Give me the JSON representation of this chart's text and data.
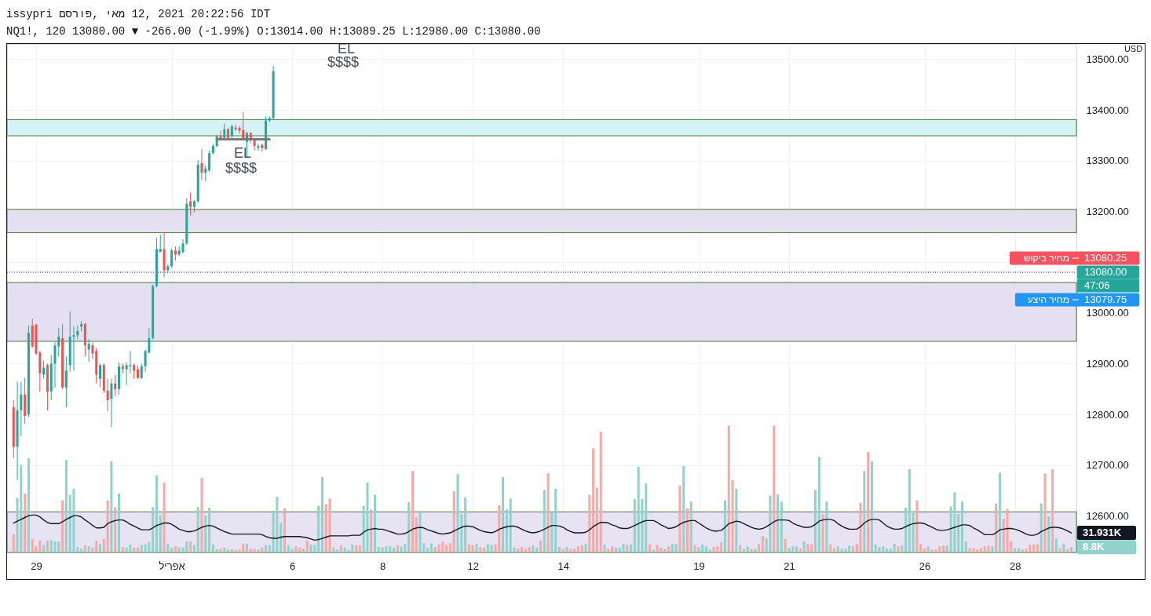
{
  "chart_data": {
    "type": "candlestick",
    "title": "issypri פורסם, מאי 12, 2021 20:22:56 IDT",
    "subtitle": "NQ1!, 120 13080.00 ▼ -266.00 (-1.99%) O:13014.00 H:13089.25 L:12980.00 C:13080.00",
    "ylabel": "USD",
    "categories": [
      null,
      null,
      null,
      null,
      null,
      null,
      "29",
      null,
      null,
      null,
      null,
      null,
      null,
      null,
      null,
      null,
      null,
      null,
      null,
      null,
      null,
      null,
      null,
      null,
      null,
      null,
      null,
      null,
      null,
      null,
      null,
      null,
      null,
      null,
      null,
      null,
      null,
      null,
      null,
      null,
      null,
      null,
      "אפריל",
      null,
      null,
      null,
      null,
      null,
      null,
      null,
      null,
      null,
      null,
      null,
      null,
      null,
      null,
      null,
      null,
      null,
      null,
      null,
      null,
      null,
      null,
      null,
      null,
      null,
      null,
      null,
      null,
      null,
      null,
      null,
      "6",
      null,
      null,
      null,
      null,
      null,
      null,
      null,
      null,
      null,
      null,
      null,
      null,
      null,
      null,
      null,
      null,
      null,
      null,
      null,
      null,
      null,
      null,
      null,
      "8",
      null,
      null,
      null,
      null,
      null,
      null,
      null,
      null,
      null,
      null,
      null,
      null,
      null,
      null,
      null,
      null,
      null,
      null,
      null,
      null,
      null,
      null,
      null,
      "12",
      null,
      null,
      null,
      null,
      null,
      null,
      null,
      null,
      null,
      null,
      null,
      null,
      null,
      null,
      null,
      null,
      null,
      null,
      null,
      null,
      null,
      null,
      null,
      "14",
      null,
      null,
      null,
      null,
      null,
      null,
      null,
      null,
      null,
      null,
      null,
      null,
      null,
      null,
      null,
      null,
      null,
      null,
      null,
      null,
      null,
      null,
      null,
      null,
      null,
      null,
      null,
      null,
      null,
      null,
      null,
      null,
      null,
      null,
      null,
      "19",
      null,
      null,
      null,
      null,
      null,
      null,
      null,
      null,
      null,
      null,
      null,
      null,
      null,
      null,
      null,
      null,
      null,
      null,
      null,
      null,
      null,
      null,
      null,
      "21",
      null,
      null,
      null,
      null,
      null,
      null,
      null,
      null,
      null,
      null,
      null,
      null,
      null,
      null,
      null,
      null,
      null,
      null,
      null,
      null,
      null,
      null,
      null,
      null,
      null,
      null,
      null,
      null,
      null,
      null,
      null,
      null,
      null,
      null,
      null,
      "26",
      null,
      null,
      null,
      null,
      null,
      null,
      null,
      null,
      null,
      null,
      null,
      null,
      null,
      null,
      null,
      null,
      null,
      null,
      null,
      null,
      null,
      null,
      null,
      "28",
      null,
      null,
      null,
      null,
      null,
      null,
      null,
      null,
      null,
      null,
      null,
      null,
      null,
      null,
      null
    ],
    "ohlc": [
      [
        12814,
        12828,
        12714,
        12736
      ],
      [
        12736,
        12864,
        12670,
        12808
      ],
      [
        12808,
        12864,
        12758,
        12839
      ],
      [
        12839,
        12872,
        12781,
        12797
      ],
      [
        12800,
        12975,
        12795,
        12961
      ],
      [
        12975,
        12989,
        12931,
        12934
      ],
      [
        12977,
        12978,
        12917,
        12920
      ],
      [
        12922,
        12925,
        12845,
        12881
      ],
      [
        12878,
        12906,
        12870,
        12892
      ],
      [
        12897,
        12900,
        12808,
        12845
      ],
      [
        12845,
        12917,
        12828,
        12900
      ],
      [
        12900,
        12942,
        12853,
        12936
      ],
      [
        12934,
        12970,
        12914,
        12953
      ],
      [
        12950,
        12978,
        12850,
        12853
      ],
      [
        12853,
        12914,
        12814,
        12886
      ],
      [
        12897,
        13003,
        12884,
        12953
      ],
      [
        12953,
        12973,
        12886,
        12956
      ],
      [
        12956,
        12975,
        12948,
        12964
      ],
      [
        12973,
        12984,
        12964,
        12978
      ],
      [
        12978,
        12981,
        12914,
        12936
      ],
      [
        12928,
        12948,
        12903,
        12939
      ],
      [
        12936,
        12942,
        12909,
        12920
      ],
      [
        12925,
        12931,
        12861,
        12878
      ],
      [
        12870,
        12900,
        12853,
        12897
      ],
      [
        12897,
        12900,
        12842,
        12847
      ],
      [
        12847,
        12870,
        12806,
        12828
      ],
      [
        12831,
        12870,
        12775,
        12861
      ],
      [
        12861,
        12878,
        12836,
        12850
      ],
      [
        12850,
        12903,
        12839,
        12895
      ],
      [
        12895,
        12900,
        12881,
        12889
      ],
      [
        12889,
        12903,
        12858,
        12897
      ],
      [
        12895,
        12925,
        12881,
        12897
      ],
      [
        12897,
        12900,
        12870,
        12886
      ],
      [
        12889,
        12897,
        12870,
        12872
      ],
      [
        12872,
        12900,
        12870,
        12895
      ],
      [
        12895,
        12928,
        12884,
        12925
      ],
      [
        12922,
        12970,
        12920,
        12950
      ],
      [
        12950,
        13056,
        12948,
        13053
      ],
      [
        13053,
        13148,
        13050,
        13126
      ],
      [
        13120,
        13154,
        13120,
        13126
      ],
      [
        13126,
        13159,
        13070,
        13084
      ],
      [
        13084,
        13095,
        13078,
        13092
      ],
      [
        13092,
        13126,
        13089,
        13123
      ],
      [
        13123,
        13131,
        13103,
        13115
      ],
      [
        13115,
        13131,
        13112,
        13123
      ],
      [
        13120,
        13145,
        13117,
        13137
      ],
      [
        13137,
        13226,
        13134,
        13215
      ],
      [
        13220,
        13237,
        13192,
        13209
      ],
      [
        13209,
        13223,
        13198,
        13220
      ],
      [
        13220,
        13301,
        13217,
        13292
      ],
      [
        13295,
        13323,
        13262,
        13276
      ],
      [
        13276,
        13290,
        13259,
        13284
      ],
      [
        13281,
        13320,
        13278,
        13315
      ],
      [
        13315,
        13334,
        13312,
        13329
      ],
      [
        13329,
        13351,
        13326,
        13348
      ],
      [
        13348,
        13359,
        13340,
        13343
      ],
      [
        13345,
        13373,
        13343,
        13362
      ],
      [
        13362,
        13365,
        13343,
        13345
      ],
      [
        13348,
        13371,
        13345,
        13368
      ],
      [
        13365,
        13371,
        13359,
        13362
      ],
      [
        13365,
        13368,
        13353,
        13359
      ],
      [
        13360,
        13396,
        13340,
        13343
      ],
      [
        13337,
        13357,
        13307,
        13354
      ],
      [
        13354,
        13357,
        13334,
        13340
      ],
      [
        13343,
        13345,
        13320,
        13329
      ],
      [
        13325,
        13334,
        13320,
        13329
      ],
      [
        13331,
        13334,
        13318,
        13325
      ],
      [
        13323,
        13387,
        13321,
        13379
      ],
      [
        13379,
        13387,
        13376,
        13384
      ],
      [
        13384,
        13487,
        13381,
        13476
      ],
      null,
      null,
      null,
      null,
      null,
      null,
      null,
      null,
      null,
      null,
      null,
      null,
      null,
      null,
      null,
      null,
      null,
      null,
      null,
      null,
      null,
      null,
      null,
      null,
      null,
      null,
      null,
      null,
      null,
      null,
      null,
      null,
      null,
      null,
      null,
      null,
      null,
      null,
      null,
      null,
      null,
      null,
      null,
      null,
      null,
      null,
      null,
      null,
      null,
      null,
      null,
      null,
      null,
      null,
      null,
      null,
      null,
      null,
      null,
      null,
      null,
      null,
      null,
      null,
      null,
      null,
      null,
      null,
      null,
      null,
      null,
      null,
      null,
      null,
      null,
      null,
      null,
      null,
      null,
      null,
      null,
      null,
      null,
      null,
      null,
      null,
      null,
      null,
      null,
      null,
      null,
      null,
      null,
      null,
      null,
      null,
      null,
      null,
      null,
      null,
      null,
      null,
      null,
      null,
      null,
      null,
      null,
      null,
      null,
      null,
      null,
      null,
      null,
      null,
      null,
      null,
      null,
      null,
      null,
      null,
      null,
      null,
      null,
      null,
      null,
      null,
      null,
      null,
      null,
      null,
      null,
      null,
      null,
      null,
      null,
      null,
      null,
      null,
      null,
      null,
      null,
      null,
      null,
      null,
      null,
      null,
      null,
      null,
      null,
      null,
      null,
      null,
      null,
      null,
      null,
      null,
      null,
      null,
      null,
      null,
      null,
      null,
      null,
      null,
      null,
      null,
      null,
      null,
      null,
      null,
      null,
      null,
      null,
      null,
      null,
      null,
      null,
      null,
      null,
      null,
      null,
      null,
      null,
      null,
      null,
      null,
      null,
      null,
      null,
      null,
      null,
      null,
      null,
      null,
      null,
      null,
      null,
      null,
      null,
      null,
      null,
      null,
      null,
      null,
      null,
      null,
      null,
      null,
      null,
      null,
      null,
      null
    ],
    "colors": [
      "#ef5350",
      "#26a69a",
      "#26a69a",
      "#ef5350",
      "#26a69a",
      "#ef5350",
      "#ef5350",
      "#ef5350",
      "#26a69a",
      "#ef5350",
      "#26a69a",
      "#26a69a",
      "#26a69a",
      "#ef5350",
      "#26a69a",
      "#26a69a",
      "#26a69a",
      "#26a69a",
      "#26a69a",
      "#ef5350",
      "#26a69a",
      "#ef5350",
      "#ef5350",
      "#26a69a",
      "#ef5350",
      "#ef5350",
      "#26a69a",
      "#ef5350",
      "#26a69a",
      "#ef5350",
      "#26a69a",
      "#26a69a",
      "#ef5350",
      "#ef5350",
      "#26a69a",
      "#26a69a",
      "#26a69a",
      "#26a69a",
      "#26a69a",
      "#26a69a",
      "#ef5350",
      "#26a69a",
      "#26a69a",
      "#ef5350",
      "#26a69a",
      "#26a69a",
      "#26a69a",
      "#ef5350",
      "#26a69a",
      "#26a69a",
      "#ef5350",
      "#26a69a",
      "#26a69a",
      "#26a69a",
      "#26a69a",
      "#ef5350",
      "#26a69a",
      "#ef5350",
      "#26a69a",
      "#ef5350",
      "#ef5350",
      "#ef5350",
      "#26a69a",
      "#ef5350",
      "#ef5350",
      "#26a69a",
      "#ef5350",
      "#26a69a",
      "#26a69a",
      "#26a69a",
      null,
      null,
      null,
      null,
      null,
      null,
      null,
      null,
      null,
      null,
      null,
      null,
      null,
      null,
      null,
      null,
      null,
      null,
      null,
      null,
      null,
      null,
      null,
      null,
      null,
      null,
      null,
      null,
      null,
      null,
      null,
      null,
      null,
      null,
      null,
      null,
      null,
      null,
      null,
      null,
      null,
      null,
      null,
      null,
      null,
      null,
      null,
      null,
      null,
      null,
      null,
      null,
      null,
      null,
      null,
      null,
      null,
      null,
      null,
      null,
      null,
      null,
      null,
      null,
      null,
      null,
      null,
      null,
      null,
      null,
      null,
      null,
      null,
      null,
      null,
      null,
      null,
      null,
      null,
      null,
      null,
      null,
      null,
      null,
      null,
      null,
      null,
      null,
      null,
      null,
      null,
      null,
      null,
      null,
      null,
      null,
      null,
      null,
      null,
      null,
      null,
      null,
      null,
      null,
      null,
      null,
      null,
      null,
      null,
      null,
      null,
      null,
      null,
      null,
      null,
      null,
      null,
      null,
      null,
      null,
      null,
      null,
      null,
      null,
      null,
      null,
      null,
      null,
      null,
      null,
      null,
      null,
      null,
      null,
      null,
      null,
      null,
      null,
      null,
      null,
      null,
      null,
      null,
      null,
      null,
      null,
      null,
      null,
      null,
      null,
      null,
      null,
      null,
      null,
      null,
      null,
      null,
      null,
      null,
      null,
      null,
      null,
      null,
      null,
      null,
      null,
      null,
      null,
      null,
      null,
      null,
      null,
      null,
      null,
      null,
      null,
      null,
      null,
      null,
      null,
      null,
      null,
      null,
      null,
      null,
      null,
      null,
      null,
      null,
      null,
      null,
      null,
      null,
      null,
      null,
      null,
      null,
      null,
      null,
      null,
      null,
      null,
      null,
      null,
      null,
      null,
      null,
      null,
      null,
      null,
      null,
      null
    ],
    "series": [
      {
        "type": "bar",
        "axis": "y2",
        "values": [
          30000,
          89000,
          143000,
          96000,
          154000,
          22000,
          10000,
          20000,
          12000,
          19000,
          20000,
          18000,
          18000,
          85000,
          151000,
          94000,
          104000,
          9000,
          6000,
          12000,
          10000,
          8000,
          19000,
          14000,
          22000,
          85000,
          149000,
          74000,
          96000,
          9000,
          8000,
          13000,
          8000,
          8000,
          12000,
          13000,
          17000,
          74000,
          126000,
          61000,
          114000,
          14000,
          8000,
          10000,
          8000,
          8000,
          18000,
          18000,
          12000,
          74000,
          122000,
          60000,
          73000,
          13000,
          5000,
          6000,
          8000,
          5000,
          5000,
          4000,
          5000,
          14000,
          14000,
          6000,
          6000,
          5000,
          8000,
          12000,
          12000,
          68000,
          91000,
          49000,
          72000,
          12000,
          6000,
          10000,
          8000,
          6000,
          19000,
          13000,
          12000,
          76000,
          123000,
          79000,
          88000,
          8000,
          5000,
          12000,
          8000,
          4000,
          13000,
          12000,
          12000,
          76000,
          114000,
          70000,
          94000,
          9000,
          8000,
          10000,
          10000,
          8000,
          12000,
          10000,
          14000,
          82000,
          133000,
          58000,
          68000,
          15000,
          8000,
          15000,
          9000,
          13000,
          18000,
          12000,
          15000,
          100000,
          128000,
          63000,
          90000,
          13000,
          12000,
          14000,
          9000,
          8000,
          14000,
          12000,
          13000,
          77000,
          123000,
          70000,
          88000,
          8000,
          6000,
          9000,
          6000,
          9000,
          12000,
          8000,
          19000,
          102000,
          129000,
          65000,
          104000,
          9000,
          6000,
          9000,
          6000,
          6000,
          10000,
          12000,
          14000,
          94000,
          170000,
          106000,
          197000,
          13000,
          6000,
          10000,
          8000,
          8000,
          14000,
          12000,
          13000,
          87000,
          140000,
          87000,
          113000,
          13000,
          5000,
          12000,
          8000,
          6000,
          10000,
          14000,
          14000,
          109000,
          141000,
          72000,
          83000,
          12000,
          9000,
          13000,
          10000,
          5000,
          9000,
          10000,
          17000,
          85000,
          207000,
          118000,
          104000,
          12000,
          6000,
          10000,
          6000,
          6000,
          14000,
          27000,
          23000,
          93000,
          207000,
          95000,
          83000,
          22000,
          7000,
          10000,
          10000,
          6000,
          18000,
          14000,
          13000,
          102000,
          156000,
          62000,
          83000,
          13000,
          7000,
          10000,
          6000,
          6000,
          11000,
          10000,
          14000,
          81000,
          133000,
          164000,
          149000,
          13000,
          9000,
          10000,
          6000,
          6000,
          14000,
          10000,
          11000,
          73000,
          136000,
          64000,
          85000,
          14000,
          7000,
          10000,
          5000,
          5000,
          10000,
          11000,
          11000,
          75000,
          98000,
          63000,
          83000,
          18000,
          7000,
          7000,
          5000,
          7000,
          10000,
          11000,
          10000,
          80000,
          130000,
          55000,
          71000,
          18000,
          7000,
          7000,
          5000,
          6000,
          13000,
          13000,
          13000,
          80000,
          129000,
          59000,
          136000,
          23000,
          7000,
          14000,
          6000,
          8800
        ],
        "colors": [
          "#f7a9a7",
          "#92d2cc",
          "#92d2cc",
          "#f7a9a7",
          "#92d2cc",
          "#f7a9a7",
          "#f7a9a7",
          "#f7a9a7",
          "#92d2cc",
          "#f7a9a7",
          "#92d2cc",
          "#92d2cc",
          "#92d2cc",
          "#f7a9a7",
          "#92d2cc",
          "#92d2cc",
          "#92d2cc",
          "#92d2cc",
          "#92d2cc",
          "#f7a9a7",
          "#92d2cc",
          "#f7a9a7",
          "#f7a9a7",
          "#92d2cc",
          "#f7a9a7",
          "#f7a9a7",
          "#92d2cc",
          "#f7a9a7",
          "#92d2cc",
          "#f7a9a7",
          "#92d2cc",
          "#92d2cc",
          "#f7a9a7",
          "#f7a9a7",
          "#92d2cc",
          "#92d2cc",
          "#92d2cc",
          "#92d2cc",
          "#92d2cc",
          "#92d2cc",
          "#f7a9a7",
          "#92d2cc",
          "#92d2cc",
          "#f7a9a7",
          "#92d2cc",
          "#92d2cc",
          "#92d2cc",
          "#f7a9a7",
          "#92d2cc",
          "#92d2cc",
          "#f7a9a7",
          "#92d2cc",
          "#92d2cc",
          "#92d2cc",
          "#92d2cc",
          "#f7a9a7",
          "#92d2cc",
          "#f7a9a7",
          "#92d2cc",
          "#f7a9a7",
          "#f7a9a7",
          "#f7a9a7",
          "#92d2cc",
          "#f7a9a7",
          "#f7a9a7",
          "#92d2cc",
          "#f7a9a7",
          "#92d2cc",
          "#92d2cc",
          "#92d2cc",
          "#92d2cc",
          "#92d2cc",
          "#f7a9a7",
          "#92d2cc",
          "#92d2cc",
          "#f7a9a7",
          "#f7a9a7",
          "#92d2cc",
          "#f7a9a7",
          "#92d2cc",
          "#92d2cc",
          "#92d2cc",
          "#92d2cc",
          "#f7a9a7",
          "#f7a9a7",
          "#92d2cc",
          "#92d2cc",
          "#f7a9a7",
          "#92d2cc",
          "#92d2cc",
          "#92d2cc",
          "#f7a9a7",
          "#f7a9a7",
          "#92d2cc",
          "#92d2cc",
          "#f7a9a7",
          "#92d2cc",
          "#92d2cc",
          "#92d2cc",
          "#92d2cc",
          "#92d2cc",
          "#92d2cc",
          "#f7a9a7",
          "#92d2cc",
          "#92d2cc",
          "#92d2cc",
          "#f7a9a7",
          "#f7a9a7",
          "#92d2cc",
          "#92d2cc",
          "#92d2cc",
          "#92d2cc",
          "#f7a9a7",
          "#f7a9a7",
          "#f7a9a7",
          "#f7a9a7",
          "#f7a9a7",
          "#f7a9a7",
          "#92d2cc",
          "#92d2cc",
          "#92d2cc",
          "#f7a9a7",
          "#f7a9a7",
          "#92d2cc",
          "#f7a9a7",
          "#f7a9a7",
          "#92d2cc",
          "#92d2cc",
          "#f7a9a7",
          "#f7a9a7",
          "#92d2cc",
          "#92d2cc",
          "#92d2cc",
          "#92d2cc",
          "#f7a9a7",
          "#f7a9a7",
          "#f7a9a7",
          "#f7a9a7",
          "#92d2cc",
          "#92d2cc",
          "#f7a9a7",
          "#92d2cc",
          "#f7a9a7",
          "#92d2cc",
          "#92d2cc",
          "#92d2cc",
          "#f7a9a7",
          "#92d2cc",
          "#f7a9a7",
          "#f7a9a7",
          "#f7a9a7",
          "#f7a9a7",
          "#92d2cc",
          "#f7a9a7",
          "#f7a9a7",
          "#f7a9a7",
          "#f7a9a7",
          "#92d2cc",
          "#f7a9a7",
          "#f7a9a7",
          "#92d2cc",
          "#92d2cc",
          "#92d2cc",
          "#f7a9a7",
          "#92d2cc",
          "#92d2cc",
          "#92d2cc",
          "#92d2cc",
          "#92d2cc",
          "#f7a9a7",
          "#92d2cc",
          "#f7a9a7",
          "#f7a9a7",
          "#92d2cc",
          "#f7a9a7",
          "#92d2cc",
          "#92d2cc",
          "#f7a9a7",
          "#92d2cc",
          "#f7a9a7",
          "#92d2cc",
          "#f7a9a7",
          "#92d2cc",
          "#92d2cc",
          "#92d2cc",
          "#92d2cc",
          "#f7a9a7",
          "#f7a9a7",
          "#f7a9a7",
          "#92d2cc",
          "#f7a9a7",
          "#f7a9a7",
          "#92d2cc",
          "#f7a9a7",
          "#92d2cc",
          "#92d2cc",
          "#f7a9a7",
          "#92d2cc",
          "#f7a9a7",
          "#f7a9a7",
          "#92d2cc",
          "#92d2cc",
          "#f7a9a7",
          "#92d2cc",
          "#92d2cc",
          "#f7a9a7",
          "#92d2cc",
          "#92d2cc",
          "#92d2cc",
          "#f7a9a7",
          "#92d2cc",
          "#f7a9a7",
          "#f7a9a7",
          "#92d2cc",
          "#92d2cc",
          "#f7a9a7",
          "#92d2cc",
          "#f7a9a7",
          "#f7a9a7",
          "#92d2cc",
          "#92d2cc",
          "#92d2cc",
          "#92d2cc",
          "#f7a9a7",
          "#f7a9a7",
          "#f7a9a7",
          "#92d2cc",
          "#f7a9a7",
          "#92d2cc",
          "#92d2cc",
          "#92d2cc",
          "#92d2cc",
          "#92d2cc",
          "#92d2cc",
          "#92d2cc",
          "#f7a9a7",
          "#92d2cc",
          "#92d2cc",
          "#92d2cc",
          "#92d2cc",
          "#f7a9a7",
          "#f7a9a7",
          "#f7a9a7",
          "#92d2cc",
          "#f7a9a7",
          "#f7a9a7",
          "#f7a9a7",
          "#f7a9a7",
          "#92d2cc",
          "#92d2cc",
          "#92d2cc",
          "#92d2cc",
          "#92d2cc",
          "#92d2cc",
          "#f7a9a7",
          "#f7a9a7",
          "#f7a9a7",
          "#f7a9a7",
          "#f7a9a7",
          "#f7a9a7",
          "#92d2cc",
          "#f7a9a7",
          "#92d2cc",
          "#f7a9a7",
          "#f7a9a7",
          "#f7a9a7",
          "#92d2cc",
          "#92d2cc",
          "#f7a9a7",
          "#f7a9a7",
          "#f7a9a7",
          "#f7a9a7",
          "#f7a9a7",
          "#92d2cc",
          "#f7a9a7",
          "#92d2cc",
          "#f7a9a7",
          "#92d2cc",
          "#f7a9a7",
          "#92d2cc",
          "#f7a9a7",
          "#92d2cc"
        ]
      },
      {
        "type": "line",
        "axis": "y2",
        "color": "#131722",
        "values": [
          48000,
          51000,
          54000,
          57000,
          60000,
          61000,
          61000,
          58000,
          53000,
          49000,
          47000,
          47000,
          47000,
          50000,
          54000,
          57000,
          60000,
          60000,
          58000,
          53000,
          49000,
          44000,
          40000,
          40000,
          41000,
          47000,
          50000,
          52000,
          53000,
          53000,
          50000,
          46000,
          43000,
          40000,
          37000,
          37000,
          37000,
          40000,
          44000,
          46000,
          48000,
          48000,
          46000,
          42000,
          38000,
          36000,
          34000,
          34000,
          35000,
          38000,
          41000,
          43000,
          44000,
          43000,
          40000,
          37000,
          34000,
          32000,
          30000,
          30000,
          30000,
          30000,
          30000,
          30000,
          30000,
          30000,
          29000,
          26000,
          24000,
          23000,
          23000,
          25000,
          26000,
          26000,
          26000,
          26000,
          26000,
          25000,
          24000,
          22000,
          20000,
          21000,
          23000,
          25000,
          27000,
          27000,
          27000,
          27000,
          27000,
          27000,
          28000,
          28000,
          28000,
          33000,
          37000,
          38000,
          39000,
          38000,
          38000,
          36000,
          34000,
          32000,
          30000,
          30000,
          31000,
          34000,
          38000,
          40000,
          41000,
          40000,
          37000,
          35000,
          33000,
          31000,
          30000,
          31000,
          32000,
          35000,
          38000,
          41000,
          43000,
          43000,
          42000,
          39000,
          36000,
          34000,
          33000,
          32000,
          34000,
          38000,
          40000,
          42000,
          43000,
          43000,
          41000,
          38000,
          35000,
          33000,
          32000,
          33000,
          35000,
          38000,
          41000,
          44000,
          44000,
          43000,
          41000,
          37000,
          34000,
          32000,
          32000,
          32000,
          33000,
          37000,
          42000,
          46000,
          49000,
          49000,
          48000,
          45000,
          43000,
          40000,
          39000,
          39000,
          41000,
          44000,
          47000,
          50000,
          52000,
          52000,
          52000,
          49000,
          45000,
          42000,
          39000,
          40000,
          42000,
          46000,
          49000,
          51000,
          52000,
          52000,
          48000,
          44000,
          40000,
          37000,
          35000,
          35000,
          36000,
          41000,
          47000,
          49000,
          51000,
          50000,
          47000,
          44000,
          41000,
          39000,
          38000,
          39000,
          42000,
          46000,
          50000,
          53000,
          53000,
          53000,
          52000,
          48000,
          45000,
          43000,
          41000,
          41000,
          42000,
          46000,
          51000,
          53000,
          54000,
          54000,
          52000,
          47000,
          43000,
          40000,
          38000,
          38000,
          38000,
          42000,
          48000,
          52000,
          54000,
          54000,
          53000,
          48000,
          43000,
          40000,
          38000,
          38000,
          39000,
          42000,
          45000,
          47000,
          48000,
          48000,
          47000,
          44000,
          41000,
          38000,
          36000,
          36000,
          37000,
          39000,
          41000,
          43000,
          45000,
          45000,
          44000,
          40000,
          37000,
          33000,
          29000,
          29000,
          29000,
          32000,
          37000,
          38000,
          39000,
          39000,
          38000,
          36000,
          33000,
          30000,
          28000,
          28000,
          30000,
          34000,
          37000,
          40000,
          41000,
          41000,
          40000,
          38000,
          35000,
          31931
        ]
      },
      {
        "type": "line",
        "color": "#787b86",
        "values": [
          null,
          null,
          null,
          null,
          null,
          null,
          null,
          null,
          null,
          null,
          null,
          null,
          null,
          null,
          null,
          null,
          null,
          null,
          null,
          null,
          null,
          null,
          null,
          null,
          null,
          null,
          null,
          null,
          null,
          null,
          null,
          null,
          null,
          null,
          null,
          null,
          null,
          null,
          null,
          null,
          null,
          null,
          null,
          null,
          null,
          null,
          null,
          null,
          null,
          null,
          null,
          null,
          null,
          null,
          13342,
          13342,
          13342,
          13342,
          13342,
          13342,
          13342,
          13342,
          13342,
          13342,
          13342,
          13342,
          13342,
          13342,
          13342,
          null,
          null,
          null,
          null,
          null,
          null,
          null,
          null,
          null,
          null,
          null,
          null,
          null,
          null,
          null,
          null,
          null,
          null,
          null,
          null,
          null,
          null,
          null,
          null,
          null,
          null,
          null,
          null,
          null,
          null,
          null,
          null,
          null,
          null,
          null,
          null,
          null,
          null,
          null,
          null,
          null,
          null,
          null,
          null,
          null,
          null,
          null,
          null,
          null,
          null,
          null,
          null,
          null,
          null,
          null,
          null,
          null,
          null,
          null,
          null,
          null,
          null,
          null,
          null,
          null,
          null,
          null,
          null,
          null,
          null,
          null,
          null,
          null,
          null,
          null,
          null,
          null,
          null,
          null,
          null,
          null,
          null,
          null,
          null,
          null,
          null,
          null,
          null,
          null,
          null,
          null,
          null,
          null,
          null,
          null,
          null,
          null,
          null,
          null,
          null,
          null,
          null,
          null,
          null,
          null,
          null,
          null,
          null,
          null,
          null,
          null,
          null,
          null,
          null,
          null,
          null,
          null,
          null,
          null,
          null,
          null,
          null,
          null,
          null,
          null,
          null,
          null,
          null,
          null,
          null,
          null,
          null,
          null,
          null,
          null,
          null,
          null,
          null,
          null,
          null,
          null,
          null,
          null,
          null,
          null,
          null,
          null,
          null,
          null,
          null,
          null,
          null,
          null,
          null,
          null,
          null,
          null,
          null,
          null,
          null,
          null,
          null,
          null,
          null,
          null,
          null,
          null,
          null,
          null,
          null,
          null,
          null,
          null,
          null,
          null,
          null,
          null,
          null,
          null,
          null,
          null,
          null,
          null,
          null,
          null,
          null,
          null,
          null,
          null,
          null,
          null,
          null,
          null,
          null,
          null,
          null,
          null,
          null,
          null,
          null,
          null,
          null,
          null,
          null,
          null,
          null,
          null,
          null,
          null,
          null,
          null,
          null,
          null
        ]
      }
    ],
    "ylim": [
      12528,
      13530
    ],
    "yticks": [
      {
        "value": 12600,
        "label": "12600.00"
      },
      {
        "value": 12700,
        "label": "12700.00"
      },
      {
        "value": 12800,
        "label": "12800.00"
      },
      {
        "value": 12900,
        "label": "12900.00"
      },
      {
        "value": 13000,
        "label": "13000.00"
      },
      {
        "value": 13100,
        "label": null
      },
      {
        "value": 13200,
        "label": "13200.00"
      },
      {
        "value": 13300,
        "label": "13300.00"
      },
      {
        "value": 13400,
        "label": "13400.00"
      },
      {
        "value": 13500,
        "label": "13500.00"
      }
    ],
    "y2lim": [
      0,
      830000
    ],
    "y2ticks": [
      {
        "value": 31931,
        "label": "31.931K"
      },
      {
        "value": 8800,
        "label": "8.8K"
      }
    ],
    "bands": [
      {
        "axis": "y",
        "from": 13349,
        "to": 13381,
        "color": "#d4f3f6"
      },
      {
        "axis": "y",
        "from": 13158,
        "to": 13204,
        "color": "#e4e0f2"
      },
      {
        "axis": "y",
        "from": 12944,
        "to": 13060,
        "color": "#e4e0f2"
      },
      {
        "axis": "y",
        "from": 12528,
        "to": 12608,
        "color": "#e8e3f3"
      }
    ],
    "ref_lines": [
      {
        "axis": "y",
        "value": 13080,
        "label": "13080.00",
        "color": "#26a69a",
        "line_style": "dotted"
      },
      {
        "axis": "y",
        "value": 13079.75,
        "label": "13079.75 מחיר היצע",
        "color": "#2196f3",
        "line_style": "dotted"
      },
      {
        "axis": "y",
        "value": 13080.25,
        "label": "13080.25 מחיר ביקוש",
        "color": "#f7525f",
        "line_style": "dotted"
      }
    ],
    "annotations": [
      "EL",
      "$$$$",
      "EL",
      "$$$$",
      "47:06"
    ],
    "grid": true
  }
}
